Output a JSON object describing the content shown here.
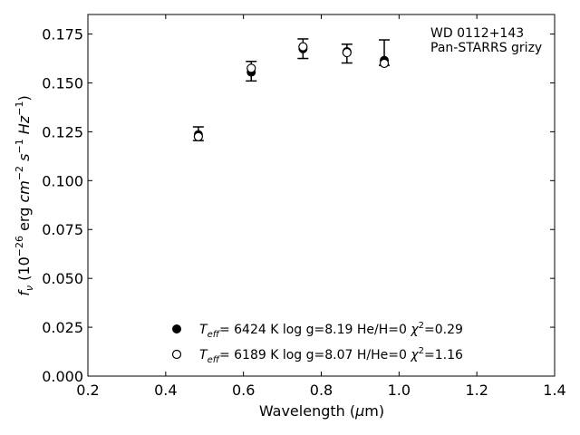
{
  "chart_data": {
    "type": "scatter",
    "title": "",
    "xlabel": "Wavelength (μm)",
    "ylabel": "fν (10⁻²⁶ erg cm⁻² s⁻¹ Hz⁻¹)",
    "xlim": [
      0.2,
      1.4
    ],
    "ylim": [
      0.0,
      0.185
    ],
    "xticks": [
      "0.2",
      "0.4",
      "0.6",
      "0.8",
      "1.0",
      "1.2",
      "1.4"
    ],
    "yticks": [
      "0.000",
      "0.025",
      "0.050",
      "0.075",
      "0.100",
      "0.125",
      "0.150",
      "0.175"
    ],
    "annotation": [
      "WD 0112+143",
      "Pan-STARRS grizy"
    ],
    "observed": {
      "x": [
        0.484,
        0.62,
        0.753,
        0.866,
        0.962
      ],
      "y": [
        0.124,
        0.156,
        0.1675,
        0.165,
        0.1655
      ],
      "yerr": [
        0.0035,
        0.005,
        0.005,
        0.0048,
        0.0065
      ]
    },
    "series": [
      {
        "name": "Teff= 6424 K log g=8.19 He/H=0 χ²=0.29",
        "marker": "filled-circle",
        "x": [
          0.484,
          0.62,
          0.753,
          0.866,
          0.962
        ],
        "y": [
          0.1235,
          0.1555,
          0.1675,
          0.166,
          0.1615
        ]
      },
      {
        "name": "Teff= 6189 K log g=8.07 H/He=0 χ²=1.16",
        "marker": "open-circle",
        "x": [
          0.484,
          0.62,
          0.753,
          0.866,
          0.962
        ],
        "y": [
          0.1225,
          0.1575,
          0.1685,
          0.1655,
          0.16
        ]
      }
    ],
    "legend": {
      "placement": "lower-center",
      "entries": [
        {
          "teff": "6424 K",
          "logg": "log g=8.19",
          "comp": "He/H=0",
          "chi": "=0.29"
        },
        {
          "teff": "6189 K",
          "logg": "log g=8.07",
          "comp": "H/He=0",
          "chi": "=1.16"
        }
      ]
    },
    "grid": false
  }
}
